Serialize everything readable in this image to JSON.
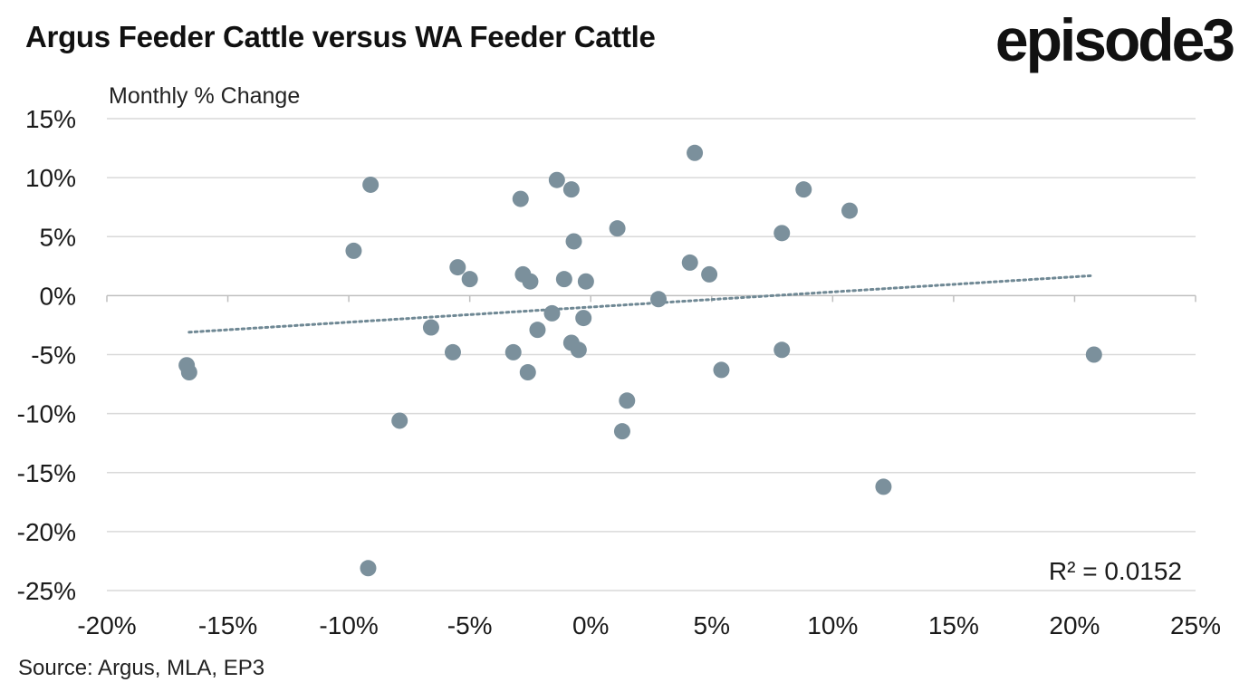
{
  "header": {
    "title": "Argus Feeder Cattle versus WA Feeder Cattle",
    "logo_text": "episode3"
  },
  "footer": {
    "source": "Source: Argus, MLA, EP3"
  },
  "colors": {
    "points": "#7b909c",
    "trendline": "#6f8894",
    "gridline": "#d9d9d9",
    "zero_axis": "#bfbfbf",
    "text": "#1a1a1a"
  },
  "chart_data": {
    "type": "scatter",
    "title": "Argus Feeder Cattle versus WA Feeder Cattle",
    "ylabel": "Monthly % Change",
    "xlabel": "",
    "xlim": [
      -20,
      25
    ],
    "ylim": [
      -25,
      15
    ],
    "x_ticks": [
      -20,
      -15,
      -10,
      -5,
      0,
      5,
      10,
      15,
      20,
      25
    ],
    "y_ticks": [
      15,
      10,
      5,
      0,
      -5,
      -10,
      -15,
      -20,
      -25
    ],
    "x_tick_labels": [
      "-20%",
      "-15%",
      "-10%",
      "-5%",
      "0%",
      "5%",
      "10%",
      "15%",
      "20%",
      "25%"
    ],
    "y_tick_labels": [
      "15%",
      "10%",
      "5%",
      "0%",
      "-5%",
      "-10%",
      "-15%",
      "-20%",
      "-25%"
    ],
    "grid": "horizontal",
    "points": [
      {
        "x": -16.7,
        "y": -5.9
      },
      {
        "x": -16.6,
        "y": -6.5
      },
      {
        "x": -9.8,
        "y": 3.8
      },
      {
        "x": -9.1,
        "y": 9.4
      },
      {
        "x": -9.2,
        "y": -23.1
      },
      {
        "x": -7.9,
        "y": -10.6
      },
      {
        "x": -6.6,
        "y": -2.7
      },
      {
        "x": -5.7,
        "y": -4.8
      },
      {
        "x": -5.5,
        "y": 2.4
      },
      {
        "x": -5.0,
        "y": 1.4
      },
      {
        "x": -3.2,
        "y": -4.8
      },
      {
        "x": -2.9,
        "y": 8.2
      },
      {
        "x": -2.8,
        "y": 1.8
      },
      {
        "x": -2.6,
        "y": -6.5
      },
      {
        "x": -2.5,
        "y": 1.2
      },
      {
        "x": -2.2,
        "y": -2.9
      },
      {
        "x": -1.6,
        "y": -1.5
      },
      {
        "x": -1.4,
        "y": 9.8
      },
      {
        "x": -1.1,
        "y": 1.4
      },
      {
        "x": -0.8,
        "y": 9.0
      },
      {
        "x": -0.8,
        "y": -4.0
      },
      {
        "x": -0.7,
        "y": 4.6
      },
      {
        "x": -0.5,
        "y": -4.6
      },
      {
        "x": -0.3,
        "y": -1.9
      },
      {
        "x": -0.2,
        "y": 1.2
      },
      {
        "x": 1.1,
        "y": 5.7
      },
      {
        "x": 1.3,
        "y": -11.5
      },
      {
        "x": 1.5,
        "y": -8.9
      },
      {
        "x": 2.8,
        "y": -0.3
      },
      {
        "x": 4.1,
        "y": 2.8
      },
      {
        "x": 4.3,
        "y": 12.1
      },
      {
        "x": 4.9,
        "y": 1.8
      },
      {
        "x": 5.4,
        "y": -6.3
      },
      {
        "x": 7.9,
        "y": 5.3
      },
      {
        "x": 7.9,
        "y": -4.6
      },
      {
        "x": 8.8,
        "y": 9.0
      },
      {
        "x": 10.7,
        "y": 7.2
      },
      {
        "x": 12.1,
        "y": -16.2
      },
      {
        "x": 20.8,
        "y": -5.0
      }
    ],
    "trendline": {
      "style": "dotted",
      "x_start": -16.6,
      "y_start": -3.1,
      "x_end": 20.8,
      "y_end": 1.7
    },
    "annotation": "R² = 0.0152"
  }
}
